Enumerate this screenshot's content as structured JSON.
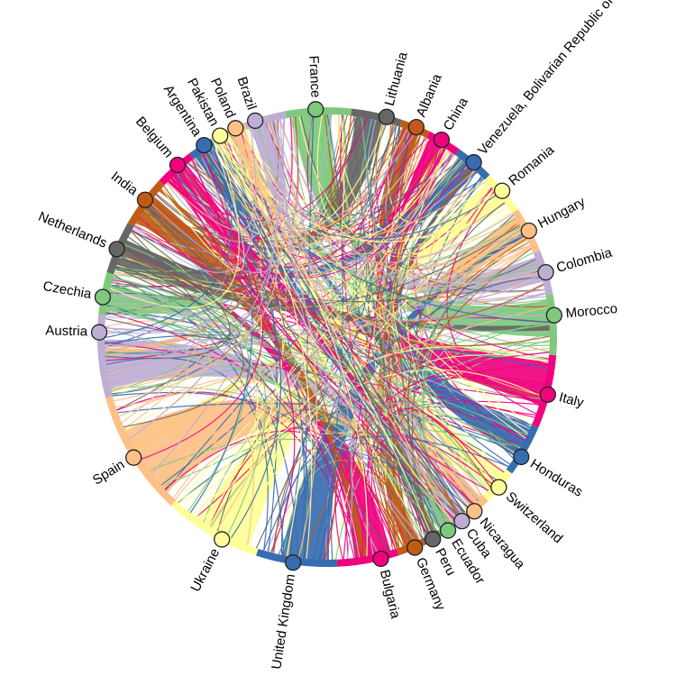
{
  "nodes": [
    {
      "label": "France",
      "color": "#7fc97f"
    },
    {
      "label": "Lithuania",
      "color": "#666666"
    },
    {
      "label": "Albania",
      "color": "#bf5b17"
    },
    {
      "label": "China",
      "color": "#f0027f"
    },
    {
      "label": "Venezuela, Bolivarian Republic of",
      "color": "#386cb0"
    },
    {
      "label": "Romania",
      "color": "#ffff99"
    },
    {
      "label": "Hungary",
      "color": "#fdc086"
    },
    {
      "label": "Colombia",
      "color": "#beaed4"
    },
    {
      "label": "Morocco",
      "color": "#7fc97f"
    },
    {
      "label": "Italy",
      "color": "#f0027f"
    },
    {
      "label": "Honduras",
      "color": "#386cb0"
    },
    {
      "label": "Switzerland",
      "color": "#ffff99"
    },
    {
      "label": "Nicaragua",
      "color": "#fdc086"
    },
    {
      "label": "Cuba",
      "color": "#beaed4"
    },
    {
      "label": "Ecuador",
      "color": "#7fc97f"
    },
    {
      "label": "Peru",
      "color": "#666666"
    },
    {
      "label": "Germany",
      "color": "#bf5b17"
    },
    {
      "label": "Bulgaria",
      "color": "#f0027f"
    },
    {
      "label": "United Kingdom",
      "color": "#386cb0"
    },
    {
      "label": "Ukraine",
      "color": "#ffff99"
    },
    {
      "label": "Spain",
      "color": "#fdc086"
    },
    {
      "label": "Austria",
      "color": "#beaed4"
    },
    {
      "label": "Czechia",
      "color": "#7fc97f"
    },
    {
      "label": "Netherlands",
      "color": "#666666"
    },
    {
      "label": "India",
      "color": "#bf5b17"
    },
    {
      "label": "Belgium",
      "color": "#f0027f"
    },
    {
      "label": "Argentina",
      "color": "#386cb0"
    },
    {
      "label": "Pakistan",
      "color": "#ffff99"
    },
    {
      "label": "Poland",
      "color": "#fdc086"
    },
    {
      "label": "Brazil",
      "color": "#beaed4"
    }
  ]
}
